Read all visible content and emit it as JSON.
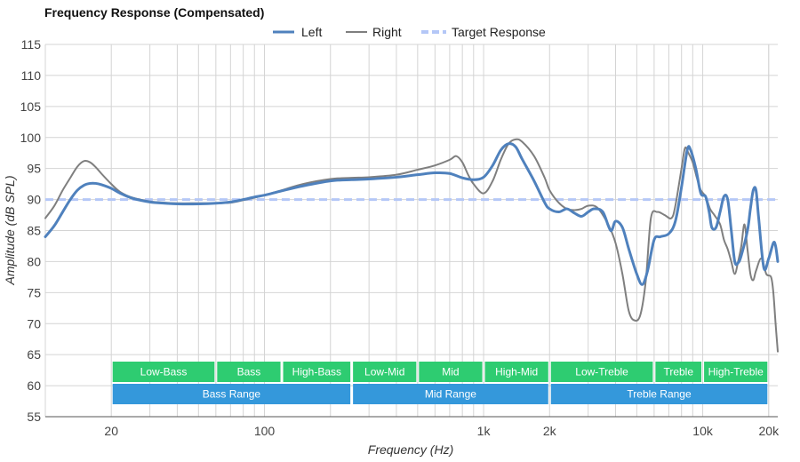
{
  "chart_data": {
    "type": "line",
    "title": "Frequency Response (Compensated)",
    "xlabel": "Frequency (Hz)",
    "ylabel": "Amplitude (dB SPL)",
    "xscale": "log",
    "xlim": [
      10,
      22000
    ],
    "ylim": [
      55,
      115
    ],
    "yticks": [
      55,
      60,
      65,
      70,
      75,
      80,
      85,
      90,
      95,
      100,
      105,
      110,
      115
    ],
    "xticks": [
      {
        "value": 20,
        "label": "20"
      },
      {
        "value": 100,
        "label": "100"
      },
      {
        "value": 1000,
        "label": "1k"
      },
      {
        "value": 2000,
        "label": "2k"
      },
      {
        "value": 10000,
        "label": "10k"
      },
      {
        "value": 20000,
        "label": "20k"
      }
    ],
    "grid": true,
    "legend_position": "top-center",
    "series": [
      {
        "name": "Left",
        "color": "#4f81bd",
        "style": "solid",
        "points": [
          [
            10,
            84.0
          ],
          [
            11,
            85.8
          ],
          [
            12,
            88.0
          ],
          [
            13,
            90.0
          ],
          [
            14,
            91.5
          ],
          [
            15,
            92.3
          ],
          [
            16,
            92.6
          ],
          [
            17,
            92.6
          ],
          [
            18,
            92.4
          ],
          [
            20,
            91.8
          ],
          [
            22,
            91.0
          ],
          [
            25,
            90.2
          ],
          [
            30,
            89.6
          ],
          [
            35,
            89.4
          ],
          [
            40,
            89.3
          ],
          [
            50,
            89.3
          ],
          [
            60,
            89.4
          ],
          [
            70,
            89.6
          ],
          [
            80,
            90.0
          ],
          [
            90,
            90.4
          ],
          [
            100,
            90.7
          ],
          [
            120,
            91.4
          ],
          [
            150,
            92.2
          ],
          [
            200,
            93.0
          ],
          [
            250,
            93.2
          ],
          [
            300,
            93.3
          ],
          [
            400,
            93.6
          ],
          [
            500,
            94.0
          ],
          [
            600,
            94.3
          ],
          [
            700,
            94.2
          ],
          [
            800,
            93.5
          ],
          [
            900,
            93.2
          ],
          [
            1000,
            93.6
          ],
          [
            1100,
            95.5
          ],
          [
            1200,
            98.0
          ],
          [
            1300,
            99.0
          ],
          [
            1400,
            98.5
          ],
          [
            1500,
            96.5
          ],
          [
            1700,
            93.0
          ],
          [
            1900,
            89.5
          ],
          [
            2000,
            88.5
          ],
          [
            2200,
            88.0
          ],
          [
            2400,
            88.5
          ],
          [
            2600,
            87.8
          ],
          [
            2800,
            87.3
          ],
          [
            3000,
            88.0
          ],
          [
            3200,
            88.5
          ],
          [
            3500,
            88.0
          ],
          [
            3800,
            85.0
          ],
          [
            4000,
            86.5
          ],
          [
            4300,
            85.5
          ],
          [
            4600,
            82.0
          ],
          [
            5000,
            78.0
          ],
          [
            5300,
            76.3
          ],
          [
            5600,
            78.5
          ],
          [
            6000,
            83.5
          ],
          [
            6400,
            84.0
          ],
          [
            7000,
            84.5
          ],
          [
            7500,
            86.5
          ],
          [
            8000,
            92.0
          ],
          [
            8500,
            98.0
          ],
          [
            8800,
            98.0
          ],
          [
            9300,
            95.0
          ],
          [
            9800,
            91.0
          ],
          [
            10300,
            90.5
          ],
          [
            10700,
            88.0
          ],
          [
            11000,
            85.5
          ],
          [
            11500,
            85.5
          ],
          [
            12000,
            88.0
          ],
          [
            12500,
            90.5
          ],
          [
            13000,
            90.0
          ],
          [
            13500,
            85.0
          ],
          [
            14000,
            80.0
          ],
          [
            14500,
            79.8
          ],
          [
            15000,
            81.0
          ],
          [
            16000,
            85.0
          ],
          [
            16500,
            88.5
          ],
          [
            17000,
            91.5
          ],
          [
            17500,
            91.5
          ],
          [
            18000,
            87.0
          ],
          [
            19000,
            79.0
          ],
          [
            20000,
            80.5
          ],
          [
            21000,
            83.0
          ],
          [
            21500,
            82.5
          ],
          [
            22000,
            80.0
          ]
        ]
      },
      {
        "name": "Right",
        "color": "#7f7f7f",
        "style": "solid",
        "points": [
          [
            10,
            87.0
          ],
          [
            11,
            89.0
          ],
          [
            12,
            91.5
          ],
          [
            13,
            93.5
          ],
          [
            14,
            95.3
          ],
          [
            15,
            96.2
          ],
          [
            16,
            96.0
          ],
          [
            17,
            95.2
          ],
          [
            18,
            94.2
          ],
          [
            20,
            92.5
          ],
          [
            22,
            91.2
          ],
          [
            25,
            90.3
          ],
          [
            30,
            89.7
          ],
          [
            35,
            89.5
          ],
          [
            40,
            89.4
          ],
          [
            50,
            89.4
          ],
          [
            60,
            89.4
          ],
          [
            70,
            89.5
          ],
          [
            80,
            89.9
          ],
          [
            90,
            90.3
          ],
          [
            100,
            90.7
          ],
          [
            120,
            91.5
          ],
          [
            150,
            92.5
          ],
          [
            200,
            93.3
          ],
          [
            250,
            93.5
          ],
          [
            300,
            93.6
          ],
          [
            400,
            94.0
          ],
          [
            500,
            94.8
          ],
          [
            600,
            95.5
          ],
          [
            700,
            96.4
          ],
          [
            750,
            97.0
          ],
          [
            800,
            96.0
          ],
          [
            850,
            94.0
          ],
          [
            900,
            92.5
          ],
          [
            1000,
            91.0
          ],
          [
            1100,
            93.0
          ],
          [
            1200,
            96.5
          ],
          [
            1300,
            99.0
          ],
          [
            1400,
            99.7
          ],
          [
            1500,
            99.3
          ],
          [
            1700,
            97.0
          ],
          [
            1900,
            93.5
          ],
          [
            2000,
            91.5
          ],
          [
            2200,
            89.5
          ],
          [
            2400,
            88.5
          ],
          [
            2600,
            88.3
          ],
          [
            2800,
            88.5
          ],
          [
            3000,
            89.0
          ],
          [
            3300,
            88.7
          ],
          [
            3700,
            86.0
          ],
          [
            4000,
            83.0
          ],
          [
            4300,
            78.0
          ],
          [
            4600,
            72.0
          ],
          [
            4900,
            70.5
          ],
          [
            5200,
            71.5
          ],
          [
            5500,
            77.0
          ],
          [
            5800,
            87.0
          ],
          [
            6200,
            88.0
          ],
          [
            6700,
            87.5
          ],
          [
            7200,
            87.0
          ],
          [
            7500,
            89.0
          ],
          [
            8000,
            95.0
          ],
          [
            8300,
            98.3
          ],
          [
            8600,
            97.5
          ],
          [
            9000,
            96.0
          ],
          [
            9400,
            93.5
          ],
          [
            9800,
            91.5
          ],
          [
            10300,
            90.5
          ],
          [
            10800,
            88.5
          ],
          [
            11300,
            87.5
          ],
          [
            12000,
            86.0
          ],
          [
            12500,
            83.5
          ],
          [
            13000,
            82.0
          ],
          [
            13500,
            80.0
          ],
          [
            14000,
            78.0
          ],
          [
            14500,
            80.0
          ],
          [
            15000,
            82.5
          ],
          [
            15500,
            86.0
          ],
          [
            16000,
            82.0
          ],
          [
            16500,
            78.0
          ],
          [
            17000,
            77.0
          ],
          [
            17500,
            78.5
          ],
          [
            18500,
            80.5
          ],
          [
            19500,
            78.0
          ],
          [
            20500,
            77.5
          ],
          [
            21000,
            75.0
          ],
          [
            21500,
            70.0
          ],
          [
            22000,
            65.5
          ]
        ]
      },
      {
        "name": "Target Response",
        "color": "#b4c7f7",
        "style": "dashed",
        "points": [
          [
            10,
            90.0
          ],
          [
            22000,
            90.0
          ]
        ]
      }
    ],
    "range_bands": {
      "row1": [
        {
          "label": "Low-Bass",
          "from": 20,
          "to": 60
        },
        {
          "label": "Bass",
          "from": 60,
          "to": 120
        },
        {
          "label": "High-Bass",
          "from": 120,
          "to": 250
        },
        {
          "label": "Low-Mid",
          "from": 250,
          "to": 500
        },
        {
          "label": "Mid",
          "from": 500,
          "to": 1000
        },
        {
          "label": "High-Mid",
          "from": 1000,
          "to": 2000
        },
        {
          "label": "Low-Treble",
          "from": 2000,
          "to": 6000
        },
        {
          "label": "Treble",
          "from": 6000,
          "to": 10000
        },
        {
          "label": "High-Treble",
          "from": 10000,
          "to": 20000
        }
      ],
      "row2": [
        {
          "label": "Bass Range",
          "from": 20,
          "to": 250
        },
        {
          "label": "Mid Range",
          "from": 250,
          "to": 2000
        },
        {
          "label": "Treble Range",
          "from": 2000,
          "to": 20000
        }
      ],
      "row1_color": "#2ecc71",
      "row2_color": "#3498db"
    }
  }
}
